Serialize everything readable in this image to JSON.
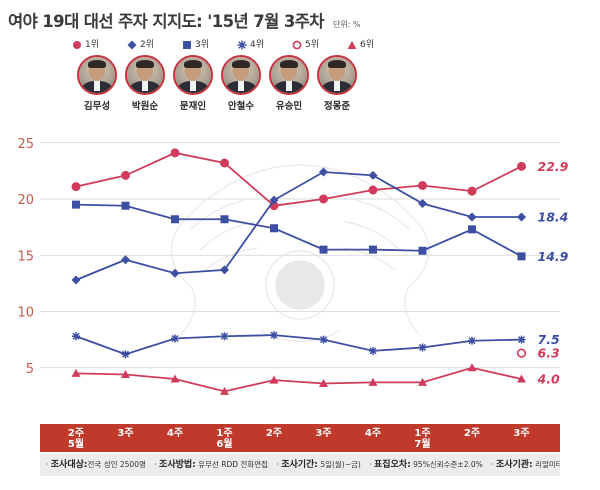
{
  "header": {
    "title": "여야 19대 대선 주자 지지도: '15년 7월 3주차",
    "unit": "단위: %"
  },
  "legend": [
    {
      "label": "1위",
      "marker": "filled-circle",
      "color": "#d13b5b"
    },
    {
      "label": "2위",
      "marker": "diamond",
      "color": "#3d4fa3"
    },
    {
      "label": "3위",
      "marker": "square",
      "color": "#3d4fa3"
    },
    {
      "label": "4위",
      "marker": "star",
      "color": "#3d4fa3"
    },
    {
      "label": "5위",
      "marker": "open-circle",
      "color": "#d13b5b"
    },
    {
      "label": "6위",
      "marker": "triangle",
      "color": "#d13b5b"
    }
  ],
  "candidates": [
    {
      "name": "김무성"
    },
    {
      "name": "박원순"
    },
    {
      "name": "문재인"
    },
    {
      "name": "안철수"
    },
    {
      "name": "유승민"
    },
    {
      "name": "정몽준"
    }
  ],
  "chart_data": {
    "type": "line",
    "title": "여야 19대 대선 주자 지지도: '15년 7월 3주차",
    "xlabel": "",
    "ylabel": "",
    "ylim": [
      0,
      25
    ],
    "yticks": [
      5,
      10,
      15,
      20,
      25
    ],
    "grid": true,
    "categories": [
      [
        "2주",
        "5월"
      ],
      [
        "3주"
      ],
      [
        "4주"
      ],
      [
        "1주",
        "6월"
      ],
      [
        "2주"
      ],
      [
        "3주"
      ],
      [
        "4주"
      ],
      [
        "1주",
        "7월"
      ],
      [
        "2주"
      ],
      [
        "3주"
      ]
    ],
    "series": [
      {
        "marker": "filled-circle",
        "color": "#d13b5b",
        "values": [
          21.1,
          22.1,
          24.1,
          23.2,
          19.4,
          20.0,
          20.8,
          21.2,
          20.7,
          22.9
        ],
        "end_label": "22.9"
      },
      {
        "marker": "diamond",
        "color": "#3d4fa3",
        "values": [
          12.8,
          14.6,
          13.4,
          13.7,
          19.9,
          22.4,
          22.1,
          19.6,
          18.4,
          18.4
        ],
        "end_label": "18.4"
      },
      {
        "marker": "square",
        "color": "#3d4fa3",
        "values": [
          19.5,
          19.4,
          18.2,
          18.2,
          17.4,
          15.5,
          15.5,
          15.4,
          17.3,
          14.9
        ],
        "end_label": "14.9"
      },
      {
        "marker": "star",
        "color": "#3d4fa3",
        "values": [
          7.8,
          6.2,
          7.6,
          7.8,
          7.9,
          7.5,
          6.5,
          6.8,
          7.4,
          7.5
        ],
        "end_label": "7.5"
      },
      {
        "marker": "open-circle",
        "color": "#d13b5b",
        "values": [
          null,
          null,
          null,
          null,
          null,
          null,
          null,
          null,
          null,
          6.3
        ],
        "end_label": "6.3"
      },
      {
        "marker": "triangle",
        "color": "#d13b5b",
        "values": [
          4.5,
          4.4,
          4.0,
          2.9,
          3.9,
          3.6,
          3.7,
          3.7,
          5.0,
          4.0
        ],
        "end_label": "4.0"
      }
    ]
  },
  "footer": {
    "notes": [
      {
        "key": "조사대상:",
        "value": "전국 성인 2500명"
      },
      {
        "key": "조사방법:",
        "value": "유무선 RDD 전화면접"
      },
      {
        "key": "조사기간:",
        "value": "5일(월)~금)"
      },
      {
        "key": "표집오차:",
        "value": "95%신뢰수준±2.0%"
      },
      {
        "key": "조사기관:",
        "value": "리얼미터"
      }
    ]
  }
}
